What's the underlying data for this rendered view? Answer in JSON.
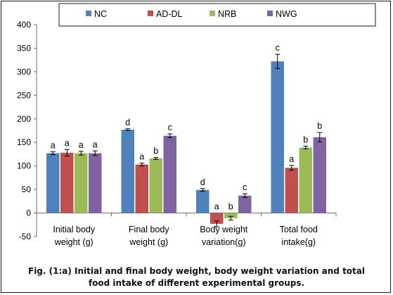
{
  "chart_data": {
    "type": "bar",
    "categories": [
      "Initial body weight (g)",
      "Final body weight (g)",
      "Body weight variation(g)",
      "Total food intake(g)"
    ],
    "category_lines": [
      [
        "Initial body",
        "weight (g)"
      ],
      [
        "Final body",
        "weight (g)"
      ],
      [
        "Body weight",
        "variation(g)"
      ],
      [
        "Total food",
        "intake(g)"
      ]
    ],
    "series": [
      {
        "name": "NC",
        "color": "#4f81bd",
        "values": [
          127,
          177,
          49,
          322
        ],
        "errors": [
          3,
          2,
          3,
          15
        ],
        "letters": [
          "a",
          "d",
          "d",
          "c"
        ]
      },
      {
        "name": "AD-DL",
        "color": "#c0504d",
        "values": [
          128,
          103,
          -23,
          96
        ],
        "errors": [
          7,
          3,
          6,
          5
        ],
        "letters": [
          "a",
          "a",
          "a",
          "a"
        ]
      },
      {
        "name": "NRB",
        "color": "#9bbb59",
        "values": [
          127,
          116,
          -11,
          139
        ],
        "errors": [
          4,
          2,
          4,
          3
        ],
        "letters": [
          "a",
          "b",
          "b",
          "b"
        ]
      },
      {
        "name": "NWG",
        "color": "#8064a2",
        "values": [
          127,
          164,
          37,
          161
        ],
        "errors": [
          5,
          4,
          4,
          10
        ],
        "letters": [
          "a",
          "c",
          "c",
          "b"
        ]
      }
    ],
    "ylim": [
      -50,
      400
    ],
    "yticks": [
      "-50",
      "0",
      "50",
      "100",
      "150",
      "200",
      "250",
      "300",
      "350",
      "400"
    ],
    "legend_position": "top"
  },
  "caption": {
    "line1": "Fig. (1:a) Initial and final body weight, body weight variation and total",
    "line2": "food intake of different experimental groups."
  }
}
